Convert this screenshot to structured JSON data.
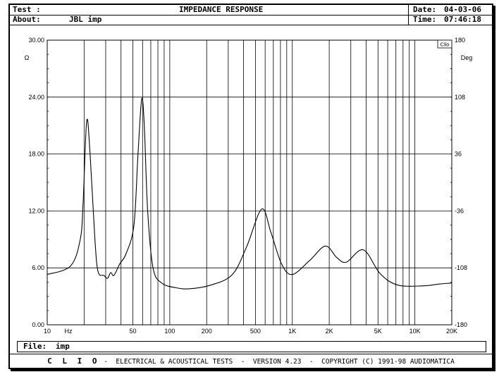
{
  "header": {
    "test_label": "Test :",
    "title": "IMPEDANCE RESPONSE",
    "about_label": "About:",
    "about_value": "JBL imp",
    "date_label": "Date:",
    "date_value": "04-03-06",
    "time_label": "Time:",
    "time_value": "07:46:18"
  },
  "file": {
    "label": "File:",
    "value": "imp"
  },
  "footer": {
    "brand": "C L I O",
    "text": " -  ELECTRICAL & ACOUSTICAL TESTS  -  VERSION 4.23  -  COPYRIGHT (C) 1991-98 AUDIOMATICA"
  },
  "chart_data": {
    "type": "line",
    "title": "IMPEDANCE RESPONSE",
    "xlabel": "Hz",
    "ylabel": "Ω",
    "y2label": "Deg",
    "watermark": "Clio",
    "xscale": "log",
    "xlim": [
      10,
      20000
    ],
    "ylim": [
      0,
      30
    ],
    "y2lim": [
      -180,
      180
    ],
    "grid": true,
    "x_ticks": [
      {
        "value": 10,
        "label": "10"
      },
      {
        "value": 50,
        "label": "50"
      },
      {
        "value": 100,
        "label": "100"
      },
      {
        "value": 200,
        "label": "200"
      },
      {
        "value": 500,
        "label": "500"
      },
      {
        "value": 1000,
        "label": "1K"
      },
      {
        "value": 2000,
        "label": "2K"
      },
      {
        "value": 5000,
        "label": "5K"
      },
      {
        "value": 10000,
        "label": "10K"
      },
      {
        "value": 20000,
        "label": "20K"
      }
    ],
    "y_ticks": [
      {
        "value": 0,
        "label": "0.00"
      },
      {
        "value": 6,
        "label": "6.00"
      },
      {
        "value": 12,
        "label": "12.00"
      },
      {
        "value": 18,
        "label": "18.00"
      },
      {
        "value": 24,
        "label": "24.00"
      },
      {
        "value": 30,
        "label": "30.00"
      }
    ],
    "y2_ticks": [
      "-180",
      "-108",
      "-36",
      "36",
      "108",
      "180"
    ],
    "series": [
      {
        "name": "impedance",
        "x": [
          10,
          15.5,
          18.6,
          19.6,
          21,
          22.4,
          24.5,
          26,
          29,
          31,
          33,
          35,
          39,
          44,
          51,
          55,
          59,
          62,
          66,
          73,
          86,
          113,
          146,
          218,
          324,
          423,
          563,
          670,
          818,
          1000,
          1390,
          1860,
          2300,
          2760,
          3800,
          5200,
          7200,
          11500,
          16000,
          20000
        ],
        "y": [
          5.3,
          6.2,
          9.0,
          12.7,
          21.5,
          17.9,
          9.0,
          5.6,
          5.2,
          4.9,
          5.5,
          5.2,
          6.4,
          7.5,
          10.5,
          17.9,
          23.8,
          20.9,
          12.0,
          6.0,
          4.4,
          3.9,
          3.8,
          4.2,
          5.3,
          8.2,
          12.2,
          9.7,
          6.4,
          5.3,
          6.8,
          8.3,
          7.1,
          6.6,
          7.9,
          5.4,
          4.2,
          4.1,
          4.3,
          4.4
        ]
      }
    ]
  }
}
